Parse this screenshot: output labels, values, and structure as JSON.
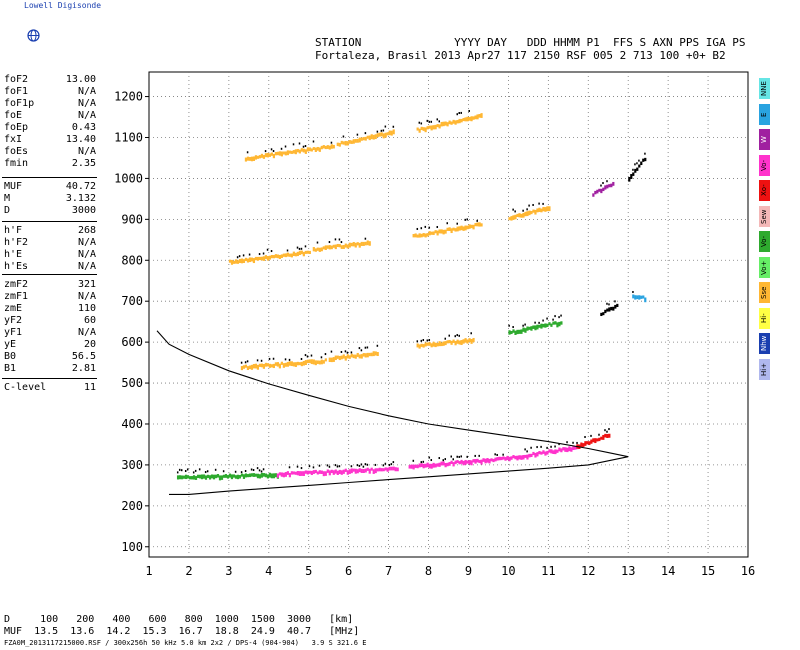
{
  "header": {
    "logo_text": "Lowell Digisonde",
    "line1": "STATION              YYYY DAY   DDD HHMM P1  FFS S AXN PPS IGA PS",
    "line2": "Fortaleza, Brasil 2013 Apr27 117 2150 RSF 005 2 713 100 +0+ B2"
  },
  "params": [
    {
      "name": "foF2",
      "value": "13.00"
    },
    {
      "name": "foF1",
      "value": "N/A"
    },
    {
      "name": "foF1p",
      "value": "N/A"
    },
    {
      "name": "foE",
      "value": "N/A"
    },
    {
      "name": "foEp",
      "value": "0.43"
    },
    {
      "name": "fxI",
      "value": "13.40"
    },
    {
      "name": "foEs",
      "value": "N/A"
    },
    {
      "name": "fmin",
      "value": "2.35"
    },
    {
      "name": "MUF",
      "value": "40.72"
    },
    {
      "name": "M",
      "value": "3.132"
    },
    {
      "name": "D",
      "value": "3000"
    },
    {
      "name": "h'F",
      "value": "268"
    },
    {
      "name": "h'F2",
      "value": "N/A"
    },
    {
      "name": "h'E",
      "value": "N/A"
    },
    {
      "name": "h'Es",
      "value": "N/A"
    },
    {
      "name": "zmF2",
      "value": "321"
    },
    {
      "name": "zmF1",
      "value": "N/A"
    },
    {
      "name": "zmE",
      "value": "110"
    },
    {
      "name": "yF2",
      "value": "60"
    },
    {
      "name": "yF1",
      "value": "N/A"
    },
    {
      "name": "yE",
      "value": "20"
    },
    {
      "name": "B0",
      "value": "56.5"
    },
    {
      "name": "B1",
      "value": "2.81"
    },
    {
      "name": "C-level",
      "value": "11"
    }
  ],
  "legend": [
    {
      "label": "NNE",
      "color": "#66e5e5"
    },
    {
      "label": "E",
      "color": "#29a3e0"
    },
    {
      "label": "W",
      "color": "#a020a0"
    },
    {
      "label": "Vo-",
      "color": "#ff33cc"
    },
    {
      "label": "Xo-",
      "color": "#ee1111"
    },
    {
      "label": "Sew",
      "color": "#f4b8b8"
    },
    {
      "label": "Vo-",
      "color": "#2eaa2e"
    },
    {
      "label": "Vo+",
      "color": "#66ee66"
    },
    {
      "label": "Sse",
      "color": "#ffb733"
    },
    {
      "label": "Hi-",
      "color": "#ffff44"
    },
    {
      "label": "Nhw",
      "color": "#1a3fb0"
    },
    {
      "label": "Hi+",
      "color": "#b0b8ee"
    }
  ],
  "bottom": {
    "row1": "D     100   200   400   600   800  1000  1500  3000   [km]",
    "row2": "MUF  13.5  13.6  14.2  15.3  16.7  18.8  24.9  40.7   [MHz]",
    "footer": "FZA0M_2013117215000.RSF / 300x256h 50 kHz 5.0 km 2x2 / DPS-4 (904-904)   3.9 S 321.6 E"
  },
  "chart_data": {
    "type": "scatter",
    "xlim": [
      1,
      16
    ],
    "ylim": [
      75,
      1260
    ],
    "x_ticks": [
      "1",
      "2",
      "3",
      "4",
      "5",
      "6",
      "7",
      "8",
      "9",
      "10",
      "11",
      "12",
      "13",
      "14",
      "15",
      "16"
    ],
    "y_ticks": [
      "100",
      "200",
      "300",
      "400",
      "500",
      "600",
      "700",
      "800",
      "900",
      "1000",
      "1100",
      "1200"
    ],
    "grid": true,
    "series": [
      {
        "segments": [
          [
            1.7,
            272,
            3.0,
            274,
            "#2eaa2e"
          ],
          [
            3.0,
            274,
            4.2,
            277,
            "#2eaa2e"
          ],
          [
            4.2,
            279,
            7.2,
            292,
            "#ff33cc"
          ],
          [
            7.5,
            297,
            10.0,
            318,
            "#ff33cc"
          ],
          [
            10.0,
            318,
            11.7,
            345,
            "#ff33cc"
          ],
          [
            11.7,
            347,
            12.5,
            375,
            "#ee1111"
          ]
        ]
      },
      {
        "segments": [
          [
            3.3,
            540,
            5.4,
            556,
            "#ffb733"
          ],
          [
            5.5,
            561,
            6.7,
            575,
            "#ffb733"
          ],
          [
            7.7,
            593,
            9.1,
            607,
            "#ffb733"
          ],
          [
            10.0,
            625,
            11.3,
            650,
            "#2eaa2e"
          ],
          [
            12.3,
            670,
            12.7,
            690,
            "#000000"
          ],
          [
            13.1,
            715,
            13.4,
            708,
            "#29a3e0"
          ]
        ]
      },
      {
        "segments": [
          [
            3.0,
            797,
            5.0,
            822,
            "#ffb733"
          ],
          [
            5.1,
            828,
            6.5,
            845,
            "#ffb733"
          ],
          [
            7.6,
            860,
            9.3,
            890,
            "#ffb733"
          ],
          [
            10.0,
            905,
            11.0,
            930,
            "#ffb733"
          ],
          [
            12.1,
            962,
            12.6,
            990,
            "#a020a0"
          ],
          [
            13.0,
            1000,
            13.4,
            1050,
            "#000000"
          ]
        ]
      },
      {
        "segments": [
          [
            3.4,
            1050,
            5.6,
            1080,
            "#ffb733"
          ],
          [
            5.7,
            1085,
            7.1,
            1115,
            "#ffb733"
          ],
          [
            7.7,
            1120,
            9.3,
            1155,
            "#ffb733"
          ]
        ]
      }
    ],
    "profile": {
      "upper": [
        [
          1.2,
          628
        ],
        [
          1.5,
          595
        ],
        [
          2,
          570
        ],
        [
          3,
          530
        ],
        [
          4,
          498
        ],
        [
          5,
          470
        ],
        [
          6,
          443
        ],
        [
          7,
          420
        ],
        [
          8,
          400
        ],
        [
          9,
          385
        ],
        [
          10,
          371
        ],
        [
          11,
          357
        ],
        [
          12,
          340
        ],
        [
          12.5,
          330
        ],
        [
          13.0,
          320
        ]
      ],
      "lower": [
        [
          13.0,
          320
        ],
        [
          12.0,
          300
        ],
        [
          11,
          292
        ],
        [
          10,
          285
        ],
        [
          9,
          278
        ],
        [
          8,
          271
        ],
        [
          7,
          264
        ],
        [
          6,
          257
        ],
        [
          5,
          250
        ],
        [
          4,
          243
        ],
        [
          3,
          236
        ],
        [
          2,
          228
        ],
        [
          1.5,
          228
        ]
      ]
    }
  }
}
